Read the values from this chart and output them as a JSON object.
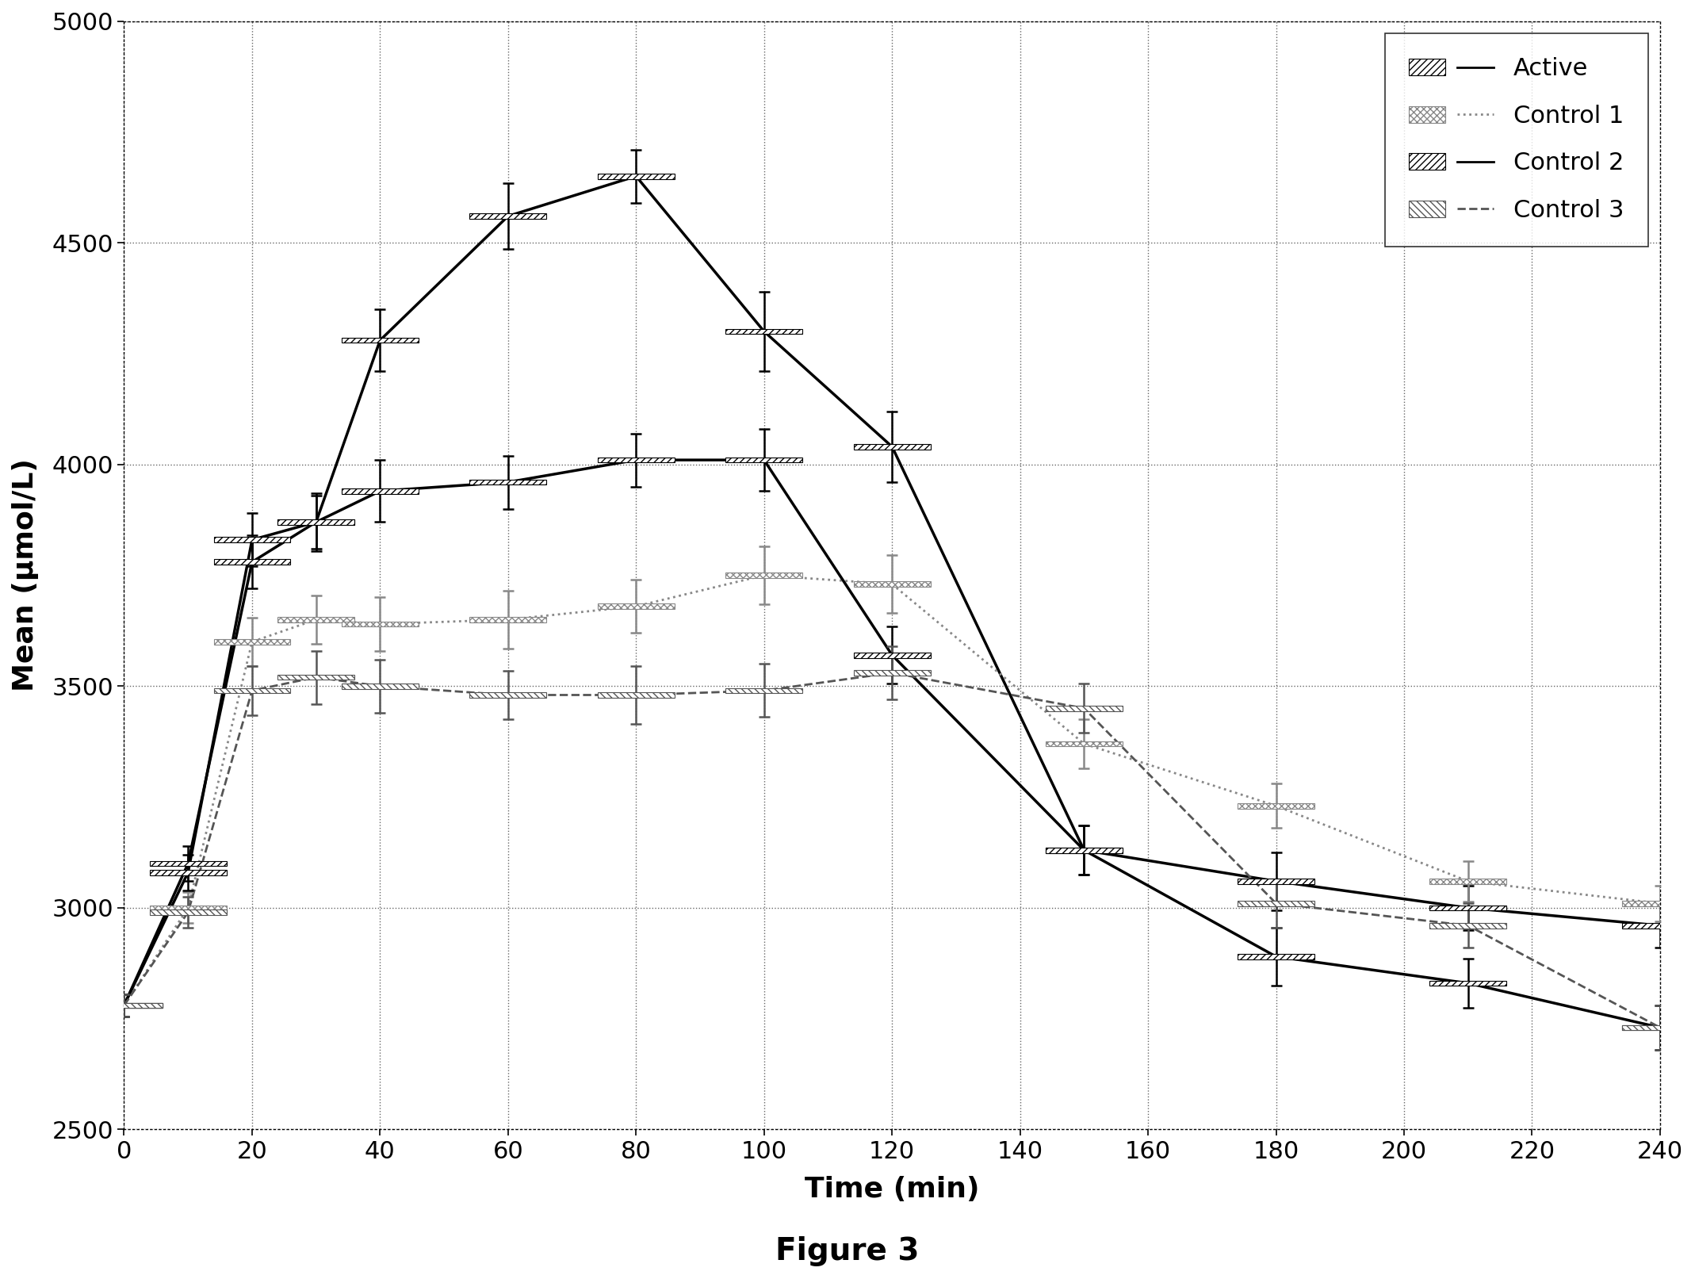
{
  "title": "Figure 3",
  "xlabel": "Time (min)",
  "ylabel": "Mean (μmol/L)",
  "xlim": [
    0,
    240
  ],
  "ylim": [
    2500,
    5000
  ],
  "yticks": [
    2500,
    3000,
    3500,
    4000,
    4500,
    5000
  ],
  "xticks": [
    0,
    20,
    40,
    60,
    80,
    100,
    120,
    140,
    160,
    180,
    200,
    220,
    240
  ],
  "series_order": [
    "Active",
    "Control 1",
    "Control 2",
    "Control 3"
  ],
  "series": {
    "Active": {
      "x": [
        0,
        10,
        20,
        30,
        40,
        60,
        80,
        100,
        120,
        150,
        180,
        210,
        240
      ],
      "y": [
        2780,
        3100,
        3780,
        3870,
        4280,
        4560,
        4650,
        4300,
        4040,
        3130,
        3060,
        3000,
        2960
      ],
      "yerr": [
        25,
        40,
        60,
        65,
        70,
        75,
        60,
        90,
        80,
        55,
        65,
        50,
        50
      ],
      "color": "#000000",
      "linestyle": "-",
      "linewidth": 2.5,
      "marker": "s",
      "markersize": 8
    },
    "Control 1": {
      "x": [
        0,
        10,
        20,
        30,
        40,
        60,
        80,
        100,
        120,
        150,
        180,
        210,
        240
      ],
      "y": [
        2780,
        3000,
        3600,
        3650,
        3640,
        3650,
        3680,
        3750,
        3730,
        3370,
        3230,
        3060,
        3010
      ],
      "yerr": [
        25,
        35,
        55,
        55,
        60,
        65,
        60,
        65,
        65,
        55,
        50,
        45,
        40
      ],
      "color": "#888888",
      "linestyle": ":",
      "linewidth": 2.0,
      "marker": "s",
      "markersize": 8
    },
    "Control 2": {
      "x": [
        0,
        10,
        20,
        30,
        40,
        60,
        80,
        100,
        120,
        150,
        180,
        210,
        240
      ],
      "y": [
        2780,
        3080,
        3830,
        3870,
        3940,
        3960,
        4010,
        4010,
        3570,
        3130,
        2890,
        2830,
        2730
      ],
      "yerr": [
        25,
        40,
        60,
        60,
        70,
        60,
        60,
        70,
        65,
        55,
        65,
        55,
        50
      ],
      "color": "#000000",
      "linestyle": "-",
      "linewidth": 2.5,
      "marker": "s",
      "markersize": 8
    },
    "Control 3": {
      "x": [
        0,
        10,
        20,
        30,
        40,
        60,
        80,
        100,
        120,
        150,
        180,
        210,
        240
      ],
      "y": [
        2780,
        2990,
        3490,
        3520,
        3500,
        3480,
        3480,
        3490,
        3530,
        3450,
        3010,
        2960,
        2730
      ],
      "yerr": [
        25,
        35,
        55,
        60,
        60,
        55,
        65,
        60,
        60,
        55,
        55,
        50,
        50
      ],
      "color": "#555555",
      "linestyle": "--",
      "linewidth": 2.0,
      "marker": "s",
      "markersize": 8
    }
  },
  "background_color": "#ffffff",
  "figsize": [
    21.38,
    16.13
  ],
  "dpi": 100
}
